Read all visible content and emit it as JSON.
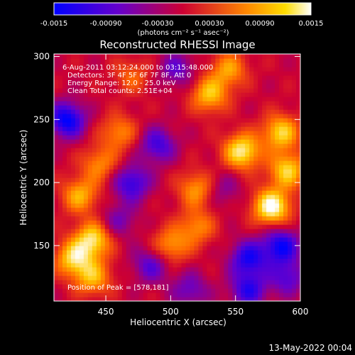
{
  "colorbar": {
    "ticks": [
      "-0.0015",
      "-0.00090",
      "-0.00030",
      "0.00030",
      "0.00090",
      "0.0015"
    ],
    "units_label": "(photons cm⁻² s⁻¹ asec⁻²)"
  },
  "annotations": {
    "time_range": "6-Aug-2011 03:12:24.000 to 03:15:48.000",
    "detectors": "Detectors: 3F 4F 5F 6F 7F 8F, Att 0",
    "energy": "Energy Range: 12.0 - 25.0 keV",
    "clean": "Clean    Total counts: 2.51E+04",
    "peak": "Position of Peak = [578,181]"
  },
  "footer": {
    "date": "13-May-2022 00:04"
  },
  "chart_data": {
    "type": "heatmap",
    "title": "Reconstructed RHESSI Image",
    "xlabel": "Heliocentric X (arcsec)",
    "ylabel": "Heliocentric Y (arcsec)",
    "xlim": [
      410,
      600
    ],
    "ylim": [
      106,
      302
    ],
    "xticks": [
      450,
      500,
      550,
      600
    ],
    "yticks": [
      150,
      200,
      250,
      300
    ],
    "color_range": [
      -0.0015,
      0.0015
    ],
    "peak": [
      578,
      181
    ],
    "colormap": [
      "#000000",
      "#0000ff",
      "#6600cc",
      "#cc0033",
      "#ff6600",
      "#ffcc00",
      "#ffffff"
    ],
    "hotspots": [
      {
        "x": 578,
        "y": 181,
        "v": 0.0015
      },
      {
        "x": 555,
        "y": 225,
        "v": 0.0013
      },
      {
        "x": 585,
        "y": 240,
        "v": 0.0011
      },
      {
        "x": 530,
        "y": 270,
        "v": 0.001
      },
      {
        "x": 545,
        "y": 290,
        "v": 0.0008
      },
      {
        "x": 590,
        "y": 210,
        "v": 0.0011
      },
      {
        "x": 520,
        "y": 195,
        "v": 0.0008
      },
      {
        "x": 440,
        "y": 155,
        "v": 0.0012
      },
      {
        "x": 425,
        "y": 140,
        "v": 0.0011
      },
      {
        "x": 430,
        "y": 190,
        "v": 0.0009
      },
      {
        "x": 445,
        "y": 215,
        "v": 0.0007
      },
      {
        "x": 460,
        "y": 240,
        "v": 0.0007
      },
      {
        "x": 440,
        "y": 125,
        "v": 0.0009
      },
      {
        "x": 500,
        "y": 150,
        "v": 0.0008
      },
      {
        "x": 520,
        "y": 165,
        "v": 0.0007
      },
      {
        "x": 470,
        "y": 285,
        "v": 0.0005
      },
      {
        "x": 470,
        "y": 200,
        "v": -0.0009
      },
      {
        "x": 490,
        "y": 230,
        "v": -0.0008
      },
      {
        "x": 420,
        "y": 250,
        "v": -0.0012
      },
      {
        "x": 505,
        "y": 290,
        "v": -0.0006
      },
      {
        "x": 485,
        "y": 135,
        "v": -0.0007
      },
      {
        "x": 560,
        "y": 140,
        "v": -0.001
      },
      {
        "x": 585,
        "y": 150,
        "v": -0.0011
      },
      {
        "x": 560,
        "y": 115,
        "v": -0.0009
      },
      {
        "x": 515,
        "y": 115,
        "v": -0.0006
      },
      {
        "x": 590,
        "y": 125,
        "v": -0.0007
      },
      {
        "x": 460,
        "y": 170,
        "v": -0.0005
      },
      {
        "x": 540,
        "y": 195,
        "v": -0.0004
      }
    ]
  }
}
